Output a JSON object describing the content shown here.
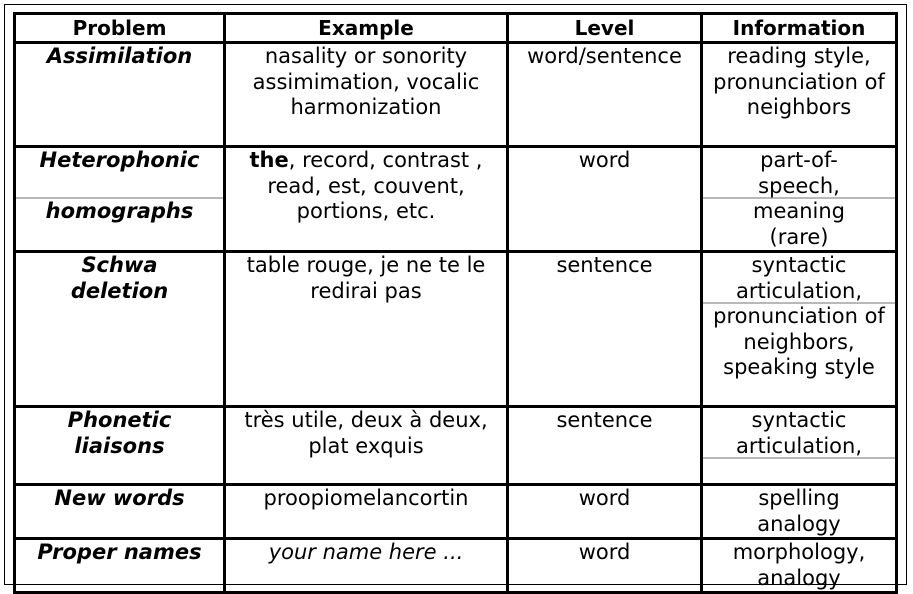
{
  "headers": [
    "Problem",
    "Example",
    "Level",
    "Information"
  ],
  "rows": [
    {
      "problem": [
        "Assimilation"
      ],
      "example": "nasality or sonority assimimation, vocalic harmonization",
      "level": "word/sentence",
      "info": [
        "reading style, pronunciation of neighbors"
      ]
    },
    {
      "problem": [
        "Heterophonic",
        "homographs"
      ],
      "example_bold": "the",
      "example_rest": ", record, contrast , read, est, couvent, portions, etc.",
      "level": "word",
      "info": [
        "part-of-speech,",
        "meaning (rare)"
      ]
    },
    {
      "problem": [
        "Schwa deletion"
      ],
      "example": "table rouge, je ne te le redirai pas",
      "level": "sentence",
      "info": [
        "syntactic articulation,",
        "pronunciation of neighbors, speaking style"
      ]
    },
    {
      "problem": [
        "Phonetic liaisons"
      ],
      "example": "très utile, deux à deux, plat exquis",
      "level": "sentence",
      "info": [
        "syntactic articulation,"
      ]
    },
    {
      "problem": [
        "New words"
      ],
      "example": "proopiomelancortin",
      "level": "word",
      "info": [
        "spelling analogy"
      ]
    },
    {
      "problem": [
        "Proper names"
      ],
      "example": "your name here ...",
      "level": "word",
      "info": [
        "morphology, analogy"
      ]
    }
  ]
}
